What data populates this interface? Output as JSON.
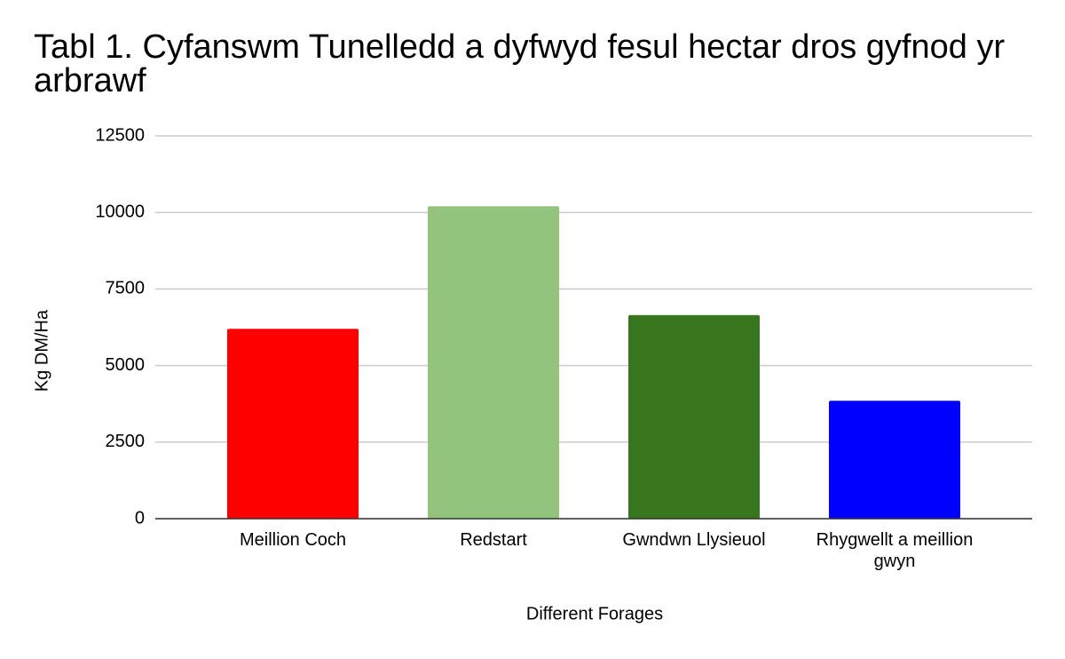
{
  "chart_data": {
    "type": "bar",
    "title": "Tabl 1. Cyfanswm Tunelledd a dyfwyd fesul hectar dros gyfnod yr arbrawf",
    "x_label": "Different Forages",
    "y_label": "Kg DM/Ha",
    "categories": [
      "Meillion Coch",
      "Redstart",
      "Gwndwn Llysieuol",
      "Rhygwellt a meillion gwyn"
    ],
    "values": [
      6200,
      10200,
      6650,
      3850
    ],
    "colors": [
      "#ff0000",
      "#93c47d",
      "#38761d",
      "#0000ff"
    ],
    "ylim": [
      0,
      12500
    ],
    "yticks": [
      0,
      2500,
      5000,
      7500,
      10000,
      12500
    ],
    "grid": true
  }
}
